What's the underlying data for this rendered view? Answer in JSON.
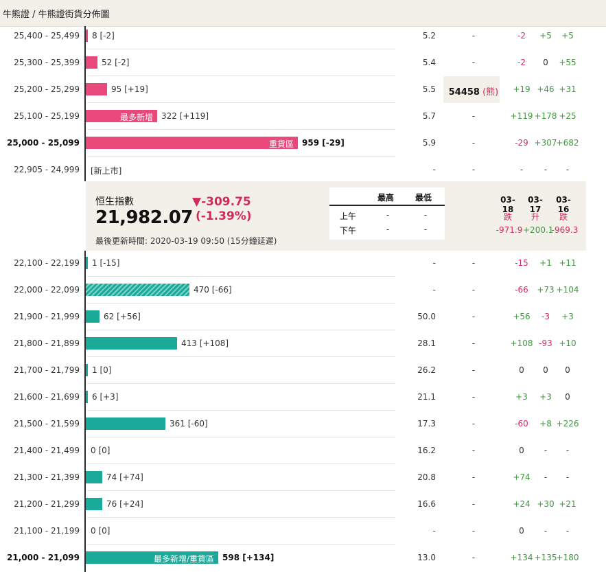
{
  "breadcrumb": "牛熊證 / 牛熊證街貨分佈圖",
  "index": {
    "name": "恒生指數",
    "value": "21,982.07",
    "change": "-309.75",
    "change_arrow": "▼",
    "change_pct": "(-1.39%)",
    "updated": "最後更新時間: 2020-03-19 09:50 (15分鐘延遲)",
    "hl_headers": [
      "最高",
      "最低"
    ],
    "hl_rows": [
      {
        "label": "上午",
        "high": "-",
        "low": "-"
      },
      {
        "label": "下午",
        "high": "-",
        "low": "-"
      }
    ],
    "dates": [
      {
        "date": "03-18",
        "word": "跌",
        "value": "-971.9"
      },
      {
        "date": "03-17",
        "word": "升",
        "value": "+200.1"
      },
      {
        "date": "03-16",
        "word": "跌",
        "value": "-969.3"
      }
    ]
  },
  "bear_rows": [
    {
      "range": "25,400 - 25,499",
      "label": "8 [-2]",
      "qty": 8,
      "c1": "5.2",
      "c2": "-",
      "changes": [
        "-2",
        "+5",
        "+5"
      ]
    },
    {
      "range": "25,300 - 25,399",
      "label": "52 [-2]",
      "qty": 52,
      "c1": "5.4",
      "c2": "-",
      "changes": [
        "-2",
        "0",
        "+55"
      ]
    },
    {
      "range": "25,200 - 25,299",
      "label": "95 [+19]",
      "qty": 95,
      "c1": "5.5",
      "c2_code": "54458",
      "c2_tag": "(熊)",
      "changes": [
        "+19",
        "+46",
        "+31"
      ]
    },
    {
      "range": "25,100 - 25,199",
      "label": "322 [+119]",
      "qty": 322,
      "inside": "最多新增",
      "c1": "5.7",
      "c2": "-",
      "changes": [
        "+119",
        "+178",
        "+25"
      ]
    },
    {
      "range": "25,000 - 25,099",
      "label": "959 [-29]",
      "qty": 959,
      "inside": "重貨區",
      "bold": true,
      "c1": "5.9",
      "c2": "-",
      "changes": [
        "-29",
        "+307",
        "+682"
      ]
    },
    {
      "range": "22,905 - 24,999",
      "label": "[新上市]",
      "qty": 0,
      "c1": "-",
      "c2": "-",
      "changes": [
        "-",
        "-",
        "-"
      ]
    }
  ],
  "bull_rows": [
    {
      "range": "22,100 - 22,199",
      "label": "1 [-15]",
      "qty": 1,
      "c1": "-",
      "c2": "-",
      "changes": [
        "-15",
        "+1",
        "+11"
      ]
    },
    {
      "range": "22,000 - 22,099",
      "label": "470 [-66]",
      "qty": 470,
      "hatched": true,
      "c1": "-",
      "c2": "-",
      "changes": [
        "-66",
        "+73",
        "+104"
      ]
    },
    {
      "range": "21,900 - 21,999",
      "label": "62 [+56]",
      "qty": 62,
      "c1": "50.0",
      "c2": "-",
      "changes": [
        "+56",
        "-3",
        "+3"
      ]
    },
    {
      "range": "21,800 - 21,899",
      "label": "413 [+108]",
      "qty": 413,
      "c1": "28.1",
      "c2": "-",
      "changes": [
        "+108",
        "-93",
        "+10"
      ]
    },
    {
      "range": "21,700 - 21,799",
      "label": "1 [0]",
      "qty": 1,
      "c1": "26.2",
      "c2": "-",
      "changes": [
        "0",
        "0",
        "0"
      ]
    },
    {
      "range": "21,600 - 21,699",
      "label": "6 [+3]",
      "qty": 6,
      "c1": "21.1",
      "c2": "-",
      "changes": [
        "+3",
        "+3",
        "0"
      ]
    },
    {
      "range": "21,500 - 21,599",
      "label": "361 [-60]",
      "qty": 361,
      "c1": "17.3",
      "c2": "-",
      "changes": [
        "-60",
        "+8",
        "+226"
      ]
    },
    {
      "range": "21,400 - 21,499",
      "label": "0 [0]",
      "qty": 0,
      "c1": "16.2",
      "c2": "-",
      "changes": [
        "0",
        "-",
        "-"
      ]
    },
    {
      "range": "21,300 - 21,399",
      "label": "74 [+74]",
      "qty": 74,
      "c1": "20.8",
      "c2": "-",
      "changes": [
        "+74",
        "-",
        "-"
      ]
    },
    {
      "range": "21,200 - 21,299",
      "label": "76 [+24]",
      "qty": 76,
      "c1": "16.6",
      "c2": "-",
      "changes": [
        "+24",
        "+30",
        "+21"
      ]
    },
    {
      "range": "21,100 - 21,199",
      "label": "0 [0]",
      "qty": 0,
      "c1": "-",
      "c2": "-",
      "changes": [
        "0",
        "-",
        "-"
      ]
    },
    {
      "range": "21,000 - 21,099",
      "label": "598 [+134]",
      "qty": 598,
      "inside": "最多新增/重貨區",
      "bold": true,
      "c1": "13.0",
      "c2": "-",
      "changes": [
        "+134",
        "+135",
        "+180"
      ]
    }
  ],
  "colors": {
    "bear": "#e8487a",
    "bull": "#1aaa99",
    "up": "#3d9a3d",
    "down": "#d42a5b"
  }
}
